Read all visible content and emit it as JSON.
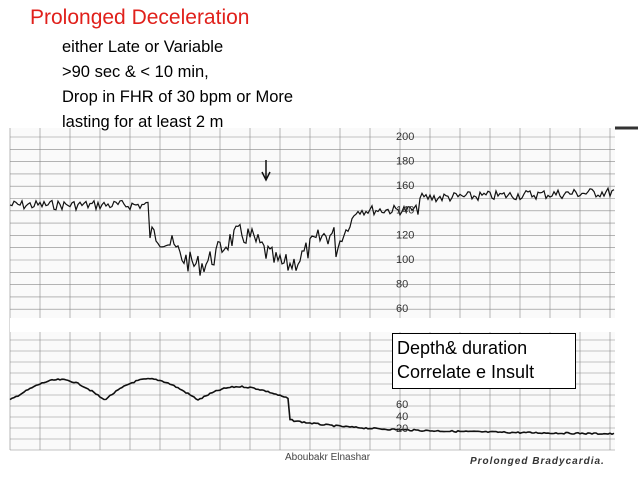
{
  "title": "Prolonged Deceleration",
  "lines": [
    "either Late or Variable",
    ">90 sec & < 10 min,",
    "Drop in FHR of 30 bpm or More",
    "lasting for at least 2 m"
  ],
  "strip": {
    "upper_scale": [
      "200",
      "180",
      "160",
      "140",
      "120",
      "100",
      "80",
      "60"
    ],
    "lower_scale": [
      "60",
      "40",
      "20"
    ],
    "caption": "Prolonged Bradycardia."
  },
  "box": [
    "Depth& duration",
    "Correlate e Insult"
  ],
  "footer": "Aboubakr Elnashar"
}
